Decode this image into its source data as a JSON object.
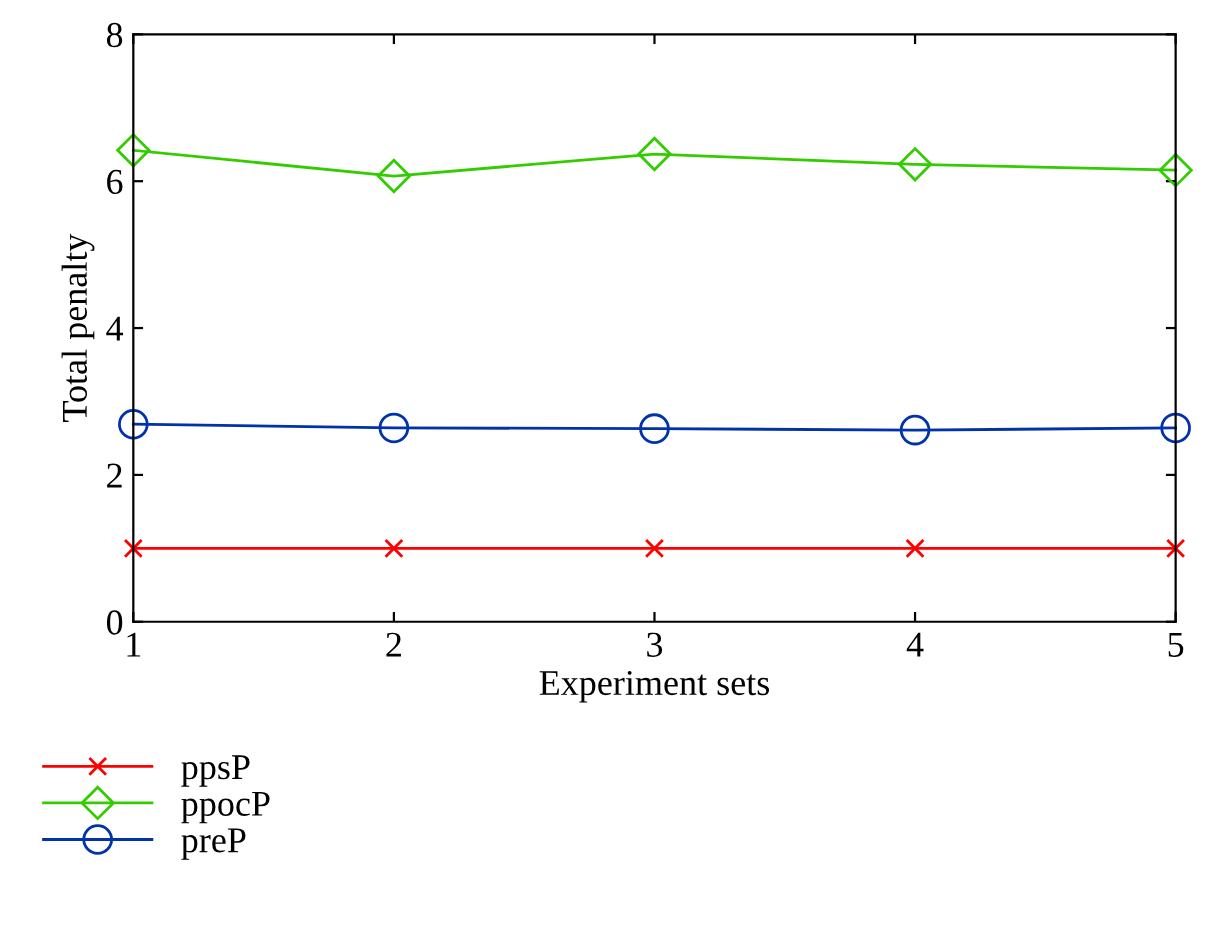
{
  "chart_data": {
    "type": "line",
    "xlabel": "Experiment sets",
    "ylabel": "Total penalty",
    "x": [
      1,
      2,
      3,
      4,
      5
    ],
    "xlim": [
      1,
      5
    ],
    "xticks": [
      1,
      2,
      3,
      4,
      5
    ],
    "ylim": [
      0,
      8
    ],
    "yticks": [
      0,
      2,
      4,
      6,
      8
    ],
    "series": [
      {
        "name": "ppsP",
        "color": "#ff0000",
        "marker": "cross",
        "values": [
          1,
          1,
          1,
          1,
          1
        ]
      },
      {
        "name": "ppocP",
        "color": "#33cc00",
        "marker": "diamond",
        "values": [
          6.42,
          6.07,
          6.37,
          6.23,
          6.15
        ]
      },
      {
        "name": "preP",
        "color": "#0033aa",
        "marker": "circle",
        "values": [
          2.69,
          2.64,
          2.63,
          2.61,
          2.64
        ]
      }
    ],
    "grid": false,
    "legend": "bottom left",
    "line_style": "solid"
  }
}
